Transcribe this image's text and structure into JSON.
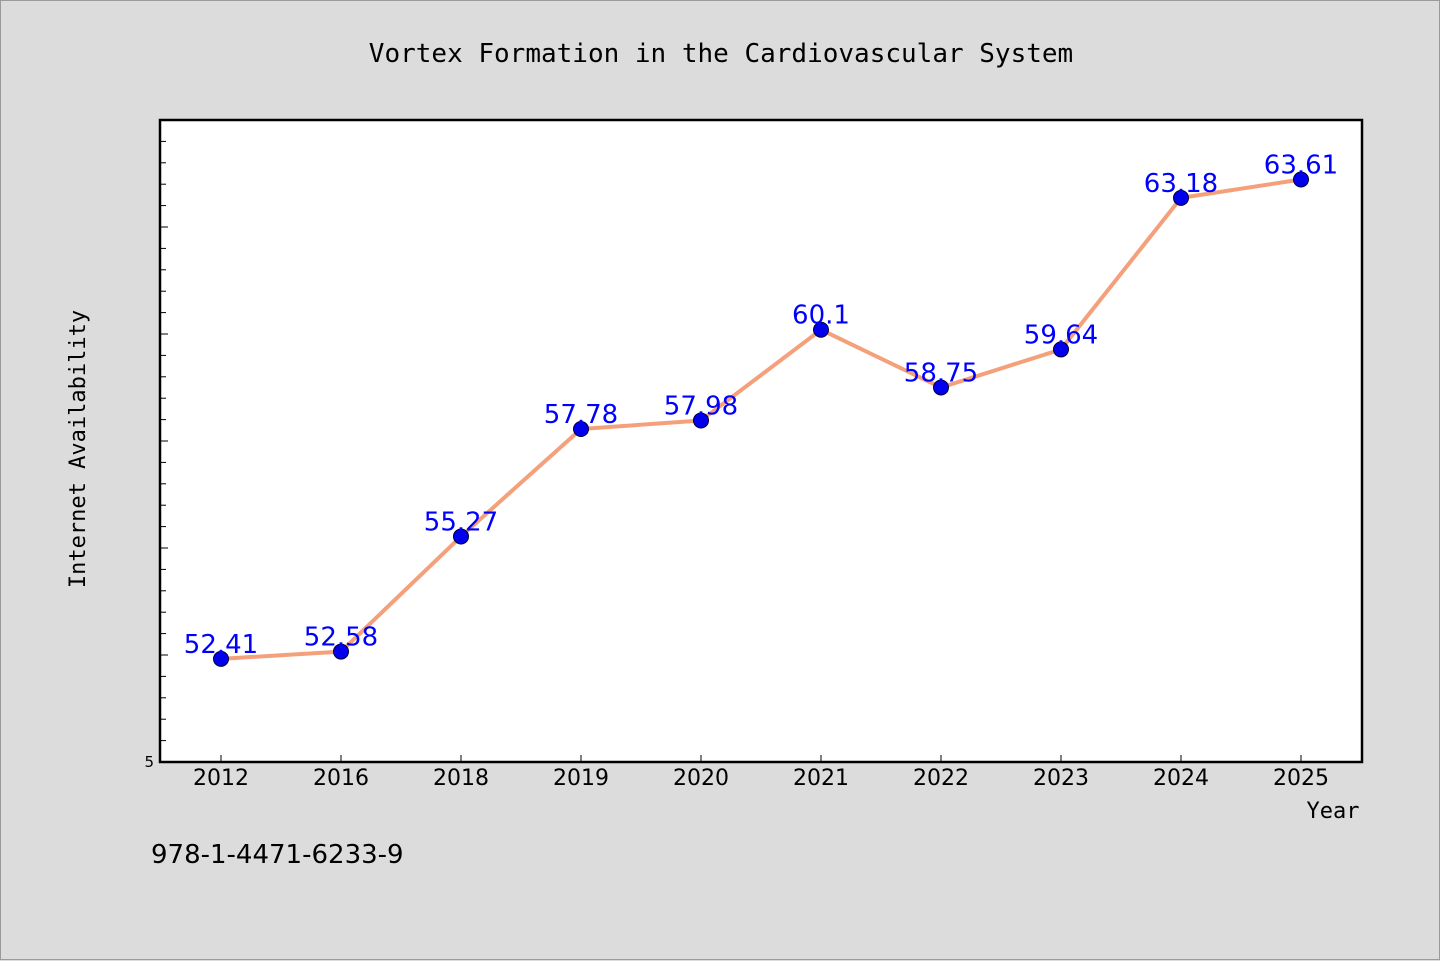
{
  "chart_data": {
    "type": "line",
    "title": "Vortex Formation in the Cardiovascular System",
    "xlabel": "Year",
    "ylabel": "Internet Availability",
    "categories": [
      "2012",
      "2016",
      "2018",
      "2019",
      "2020",
      "2021",
      "2022",
      "2023",
      "2024",
      "2025"
    ],
    "series": [
      {
        "values": [
          52.41,
          52.58,
          55.27,
          57.78,
          57.98,
          60.1,
          58.75,
          59.64,
          63.18,
          63.61
        ]
      }
    ],
    "data_labels": [
      "52.41",
      "52.58",
      "55.27",
      "57.78",
      "57.98",
      "60.1",
      "58.75",
      "59.64",
      "63.18",
      "63.61"
    ],
    "ylim": [
      50,
      65
    ],
    "ytick_labels_visible": [
      "5"
    ],
    "grid": false,
    "legend": "none",
    "colors": {
      "line": "#f4a07a",
      "marker": "#0000ee",
      "data_label": "#0000ff",
      "background": "#dcdcdc",
      "plot_area": "#ffffff"
    }
  },
  "footer": {
    "isbn": "978-1-4471-6233-9"
  }
}
